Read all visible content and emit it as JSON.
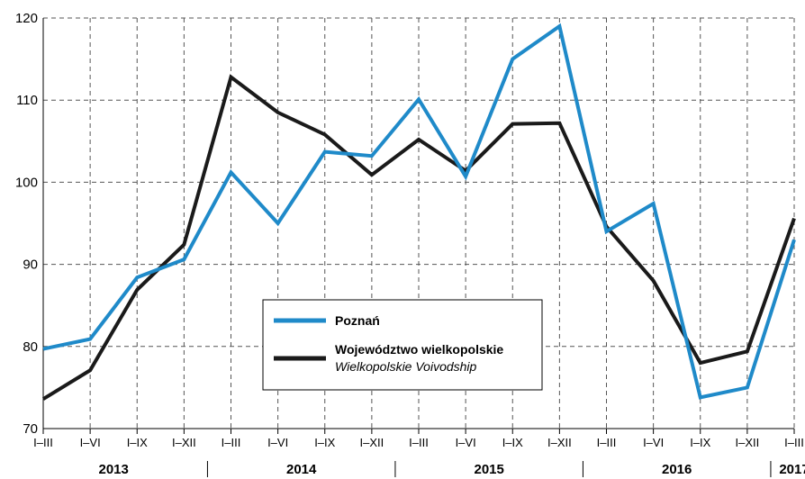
{
  "chart_data": {
    "type": "line",
    "title": "",
    "xlabel": "",
    "ylabel": "",
    "ylim": [
      70,
      120
    ],
    "yticks": [
      70,
      80,
      90,
      100,
      110,
      120
    ],
    "grid": true,
    "legend_position": "bottom-center",
    "categories": [
      "I–III",
      "I–VI",
      "I–IX",
      "I–XII",
      "I–III",
      "I–VI",
      "I–IX",
      "I–XII",
      "I–III",
      "I–VI",
      "I–IX",
      "I–XII",
      "I–III",
      "I–VI",
      "I–IX",
      "I–XII",
      "I–III"
    ],
    "years": [
      {
        "label": "2013",
        "start": 0,
        "end": 3
      },
      {
        "label": "2014",
        "start": 4,
        "end": 7
      },
      {
        "label": "2015",
        "start": 8,
        "end": 11
      },
      {
        "label": "2016",
        "start": 12,
        "end": 15
      },
      {
        "label": "2017",
        "start": 16,
        "end": 16
      }
    ],
    "series": [
      {
        "name": "Poznań",
        "subname": "",
        "color": "#1f8ac9",
        "values": [
          79.7,
          80.9,
          88.4,
          90.6,
          101.2,
          95.0,
          103.7,
          103.2,
          110.1,
          100.7,
          115.0,
          119.0,
          94.0,
          97.4,
          73.8,
          75.0,
          93.0
        ]
      },
      {
        "name": "Województwo wielkopolskie",
        "subname": "Wielkopolskie Voivodship",
        "color": "#1a1a1a",
        "values": [
          73.6,
          77.1,
          86.9,
          92.4,
          112.8,
          108.5,
          105.8,
          100.9,
          105.2,
          101.4,
          107.1,
          107.2,
          94.6,
          88.0,
          78.0,
          79.4,
          95.6
        ]
      }
    ]
  }
}
